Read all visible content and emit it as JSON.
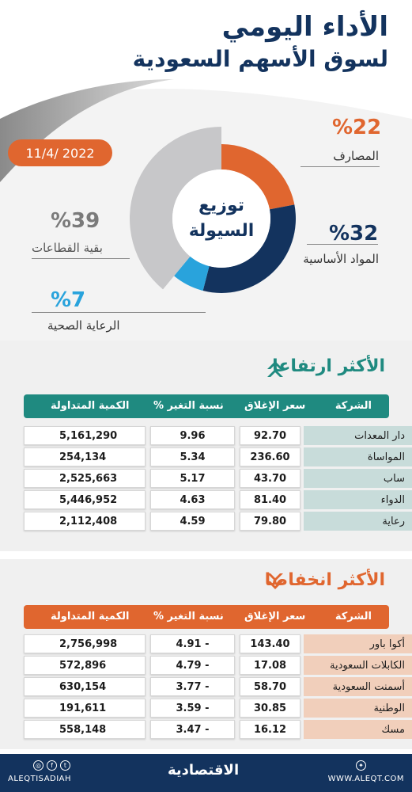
{
  "header": {
    "title_line1": "الأداء اليومي",
    "title_line2": "لسوق الأسهم السعودية",
    "date": "11/4/ 2022"
  },
  "chart_data": {
    "type": "pie",
    "center_label_line1": "توزيع",
    "center_label_line2": "السيولة",
    "categories": [
      "المصارف",
      "المواد الأساسية",
      "الرعاية الصحية",
      "بقية القطاعات"
    ],
    "values": [
      22,
      32,
      7,
      39
    ],
    "value_labels": [
      "%22",
      "%32",
      "%7",
      "%39"
    ],
    "colors": [
      "#e0662f",
      "#13335e",
      "#29a3dc",
      "#c7c7c9"
    ]
  },
  "gainers": {
    "title": "الأكثر ارتفاعا",
    "headers": {
      "company": "الشركة",
      "close": "سعر الإغلاق",
      "change": "نسبة التغير %",
      "volume": "الكمية المتداولة"
    },
    "rows": [
      {
        "company": "دار المعدات",
        "close": "92.70",
        "change": "9.96",
        "volume": "5,161,290"
      },
      {
        "company": "المواساة",
        "close": "236.60",
        "change": "5.34",
        "volume": "254,134"
      },
      {
        "company": "ساب",
        "close": "43.70",
        "change": "5.17",
        "volume": "2,525,663"
      },
      {
        "company": "الدواء",
        "close": "81.40",
        "change": "4.63",
        "volume": "5,446,952"
      },
      {
        "company": "رعاية",
        "close": "79.80",
        "change": "4.59",
        "volume": "2,112,408"
      }
    ],
    "color": "#1f8a80",
    "name_cell_color": "#c8dcda"
  },
  "losers": {
    "title": "الأكثر انخفاضا",
    "headers": {
      "company": "الشركة",
      "close": "سعر الإغلاق",
      "change": "نسبة التغير %",
      "volume": "الكمية المتداولة"
    },
    "rows": [
      {
        "company": "أكوا باور",
        "close": "143.40",
        "change": "4.91 -",
        "volume": "2,756,998"
      },
      {
        "company": "الكابلات السعودية",
        "close": "17.08",
        "change": "4.79 -",
        "volume": "572,896"
      },
      {
        "company": "أسمنت السعودية",
        "close": "58.70",
        "change": "3.77 -",
        "volume": "630,154"
      },
      {
        "company": "الوطنية",
        "close": "30.85",
        "change": "3.59 -",
        "volume": "191,611"
      },
      {
        "company": "مسك",
        "close": "16.12",
        "change": "3.47 -",
        "volume": "558,148"
      }
    ],
    "color": "#e0662f",
    "name_cell_color": "#f1cfbb"
  },
  "footer": {
    "social_handle": "ALEQTISADIAH",
    "brand": "الاقتصادية",
    "website": "WWW.ALEQT.COM"
  }
}
